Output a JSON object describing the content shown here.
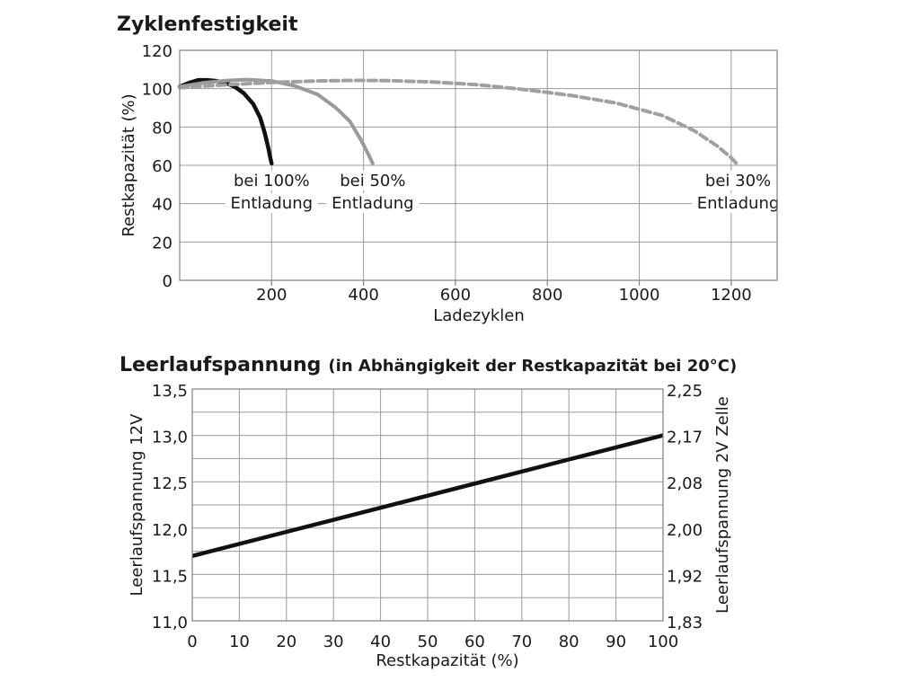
{
  "chart_data": [
    {
      "type": "line",
      "title": "Zyklenfestigkeit",
      "xlabel": "Ladezyklen",
      "ylabel": "Restkapazität (%)",
      "xlim": [
        0,
        1300
      ],
      "ylim": [
        0,
        120
      ],
      "x_ticks": [
        "200",
        "400",
        "600",
        "800",
        "1000",
        "1200"
      ],
      "y_ticks": [
        "0",
        "20",
        "40",
        "60",
        "80",
        "100",
        "120"
      ],
      "grid": true,
      "series": [
        {
          "color": "#111111",
          "style": "solid",
          "annotation": [
            "bei 100%",
            "Entladung"
          ],
          "points": [
            [
              0,
              101
            ],
            [
              20,
              103
            ],
            [
              40,
              104.5
            ],
            [
              60,
              104.5
            ],
            [
              80,
              104
            ],
            [
              100,
              103
            ],
            [
              120,
              101
            ],
            [
              140,
              97.5
            ],
            [
              160,
              92
            ],
            [
              175,
              85
            ],
            [
              185,
              77
            ],
            [
              193,
              69
            ],
            [
              197,
              64
            ],
            [
              200,
              61
            ]
          ]
        },
        {
          "color": "#9a9a9a",
          "style": "solid",
          "annotation": [
            "bei 50%",
            "Entladung"
          ],
          "points": [
            [
              0,
              101
            ],
            [
              50,
              103
            ],
            [
              100,
              104.2
            ],
            [
              145,
              104.7
            ],
            [
              200,
              104
            ],
            [
              250,
              101.5
            ],
            [
              300,
              97
            ],
            [
              340,
              90
            ],
            [
              370,
              83
            ],
            [
              395,
              73
            ],
            [
              410,
              66
            ],
            [
              420,
              61
            ]
          ]
        },
        {
          "color": "#a0a0a0",
          "style": "dashed",
          "annotation": [
            "bei 30%",
            "Entladung"
          ],
          "points": [
            [
              0,
              100.5
            ],
            [
              100,
              102
            ],
            [
              200,
              103.2
            ],
            [
              300,
              104
            ],
            [
              380,
              104.3
            ],
            [
              450,
              104.2
            ],
            [
              550,
              103.5
            ],
            [
              650,
              102
            ],
            [
              750,
              99.5
            ],
            [
              850,
              96.5
            ],
            [
              950,
              92.5
            ],
            [
              1050,
              86
            ],
            [
              1120,
              78
            ],
            [
              1170,
              70
            ],
            [
              1200,
              64
            ],
            [
              1215,
              60
            ]
          ]
        }
      ]
    },
    {
      "type": "line",
      "title": "Leerlaufspannung",
      "subtitle": "(in Abhängigkeit der Restkapazität bei 20°C)",
      "xlabel": "Restkapazität (%)",
      "ylabel": "Leerlaufspannung 12V",
      "ylabel_right": "Leerlaufspannung 2V Zelle",
      "xlim": [
        0,
        100
      ],
      "ylim": [
        11.0,
        13.5
      ],
      "x_ticks": [
        "0",
        "10",
        "20",
        "30",
        "40",
        "50",
        "60",
        "70",
        "80",
        "90",
        "100"
      ],
      "y_ticks": [
        "11,0",
        "11,5",
        "12,0",
        "12,5",
        "13,0",
        "13,5"
      ],
      "y_ticks_right": [
        "1,83",
        "1,92",
        "2,00",
        "2,08",
        "2,17",
        "2,25"
      ],
      "grid": true,
      "series": [
        {
          "color": "#111111",
          "style": "solid",
          "points": [
            [
              0,
              11.7
            ],
            [
              100,
              13.0
            ]
          ]
        }
      ]
    }
  ]
}
